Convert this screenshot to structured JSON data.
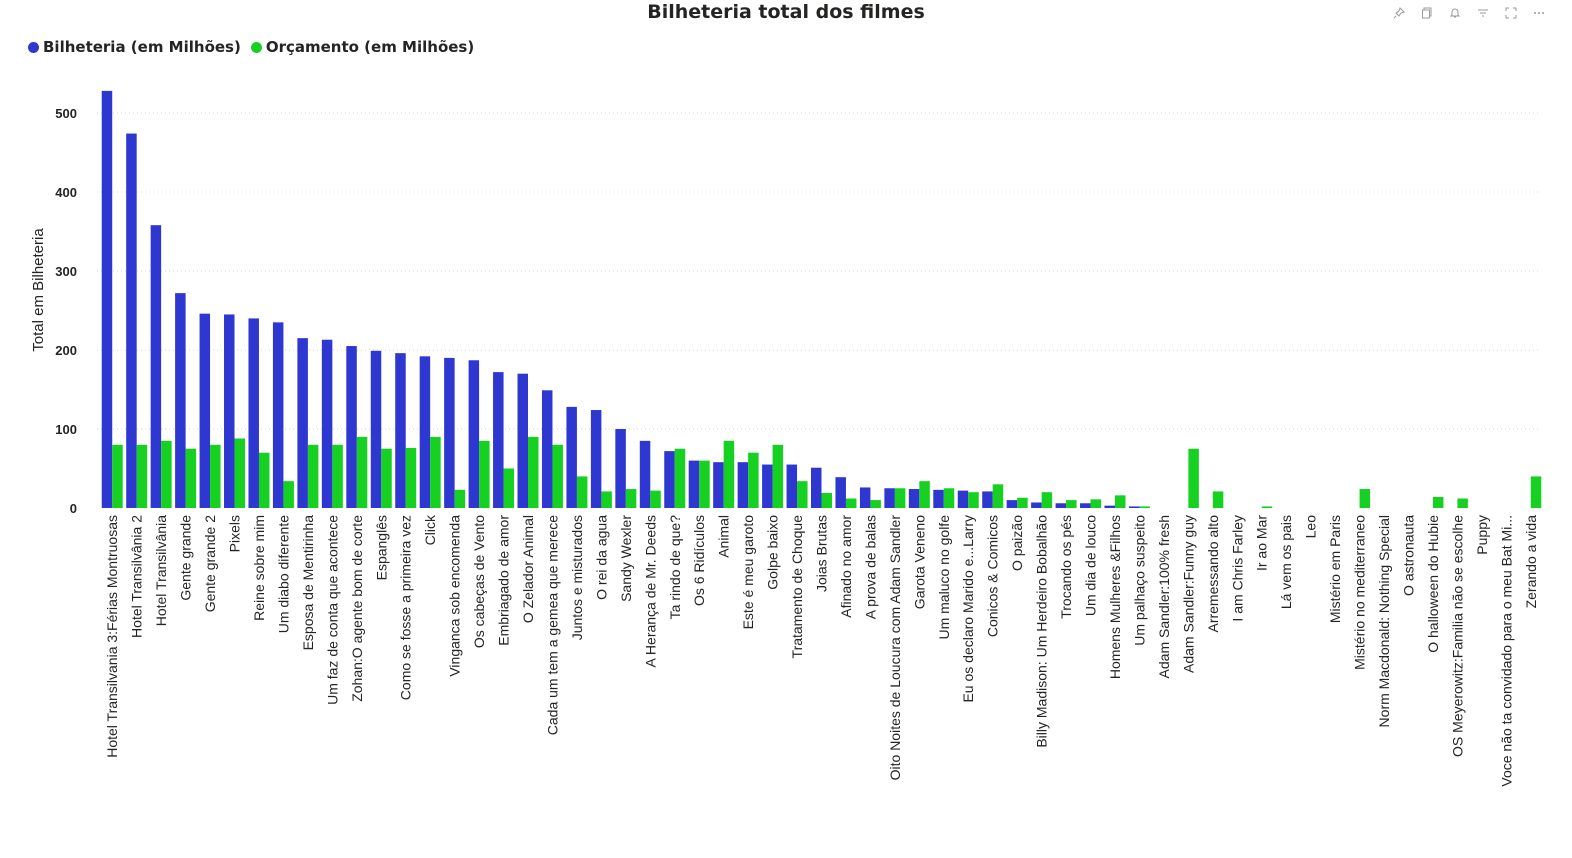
{
  "header": {
    "title": "Bilheteria total dos filmes"
  },
  "toolbar": {
    "icons": [
      "pin-icon",
      "copy-icon",
      "bell-icon",
      "filter-icon",
      "focus-icon",
      "more-icon"
    ]
  },
  "legend": {
    "items": [
      {
        "label": "Bilheteria (em Milhões)",
        "color": "#2f37d1"
      },
      {
        "label": "Orçamento (em Milhões)",
        "color": "#17d122"
      }
    ]
  },
  "chart_data": {
    "type": "bar",
    "title": "Bilheteria total dos filmes",
    "xlabel": "",
    "ylabel": "Total em Bilheteria",
    "ylim": [
      0,
      540
    ],
    "yticks": [
      0,
      100,
      200,
      300,
      400,
      500
    ],
    "grid": true,
    "legend_position": "top-left",
    "categories": [
      "Hotel Transilvania 3:Férias Montruosas",
      "Hotel Transilvânia 2",
      "Hotel Transilvânia",
      "Gente grande",
      "Gente grande 2",
      "Pixels",
      "Reine sobre mim",
      "Um diabo diferente",
      "Esposa de Mentirinha",
      "Um faz de conta que acontece",
      "Zohan:O agente bom de corte",
      "Espanglês",
      "Como se fosse a primeira vez",
      "Click",
      "Vinganca sob encomenda",
      "Os cabeças de Vento",
      "Embriagado de amor",
      "O Zelador Animal",
      "Cada um tem a gemea que merece",
      "Juntos e misturados",
      "O rei da agua",
      "Sandy Wexler",
      "A Herança de Mr. Deeds",
      "Ta rindo de que?",
      "Os 6 Ridículos",
      "Animal",
      "Este é meu garoto",
      "Golpe baixo",
      "Tratamento de Choque",
      "Joias Brutas",
      "Afinado no amor",
      "A prova de balas",
      "Oito Noites de Loucura com Adam Sandler",
      "Garota Veneno",
      "Um maluco no golfe",
      "Eu os declaro Marido e...Larry",
      "Conicos & Comicos",
      "O paizão",
      "Billy Madison: Um Herdeiro Bobalhão",
      "Trocando os pés",
      "Um dia de louco",
      "Homens Mulheres &Filhos",
      "Um palhaço suspeito",
      "Adam Sandler:100% fresh",
      "Adam Sandler:Funny guy",
      "Arremessando alto",
      "I am Chris Farley",
      "Ir ao Mar",
      "Lá vem os pais",
      "Leo",
      "Mistério em Paris",
      "Mistério no mediterraneo",
      "Norm Macdonald: Nothing Special",
      "O astronauta",
      "O halloween do Hubie",
      "OS Meyerowitz:Familia não se escolhe",
      "Puppy",
      "Voce não ta convidado para o meu Bat Mi...",
      "Zerando a vida"
    ],
    "series": [
      {
        "name": "Bilheteria (em Milhões)",
        "color": "#2f37d1",
        "values": [
          528,
          474,
          358,
          272,
          246,
          245,
          240,
          235,
          215,
          213,
          205,
          199,
          196,
          192,
          190,
          187,
          172,
          170,
          149,
          128,
          124,
          100,
          85,
          72,
          60,
          58,
          58,
          55,
          55,
          51,
          39,
          26,
          25,
          24,
          23,
          22,
          21,
          10,
          7,
          6,
          6,
          3,
          2,
          0,
          0,
          0,
          0,
          0,
          0,
          0,
          0,
          0,
          0,
          0,
          0,
          0,
          0,
          0,
          0
        ]
      },
      {
        "name": "Orçamento (em Milhões)",
        "color": "#17d122",
        "values": [
          80,
          80,
          85,
          75,
          80,
          88,
          70,
          34,
          80,
          80,
          90,
          75,
          76,
          90,
          23,
          85,
          50,
          90,
          80,
          40,
          21,
          24,
          22,
          75,
          60,
          85,
          70,
          80,
          34,
          19,
          12,
          10,
          25,
          34,
          25,
          20,
          30,
          13,
          20,
          10,
          11,
          16,
          2,
          0,
          75,
          21,
          0,
          2,
          0,
          0,
          0,
          24,
          0,
          0,
          14,
          12,
          0,
          0,
          40
        ]
      }
    ]
  }
}
